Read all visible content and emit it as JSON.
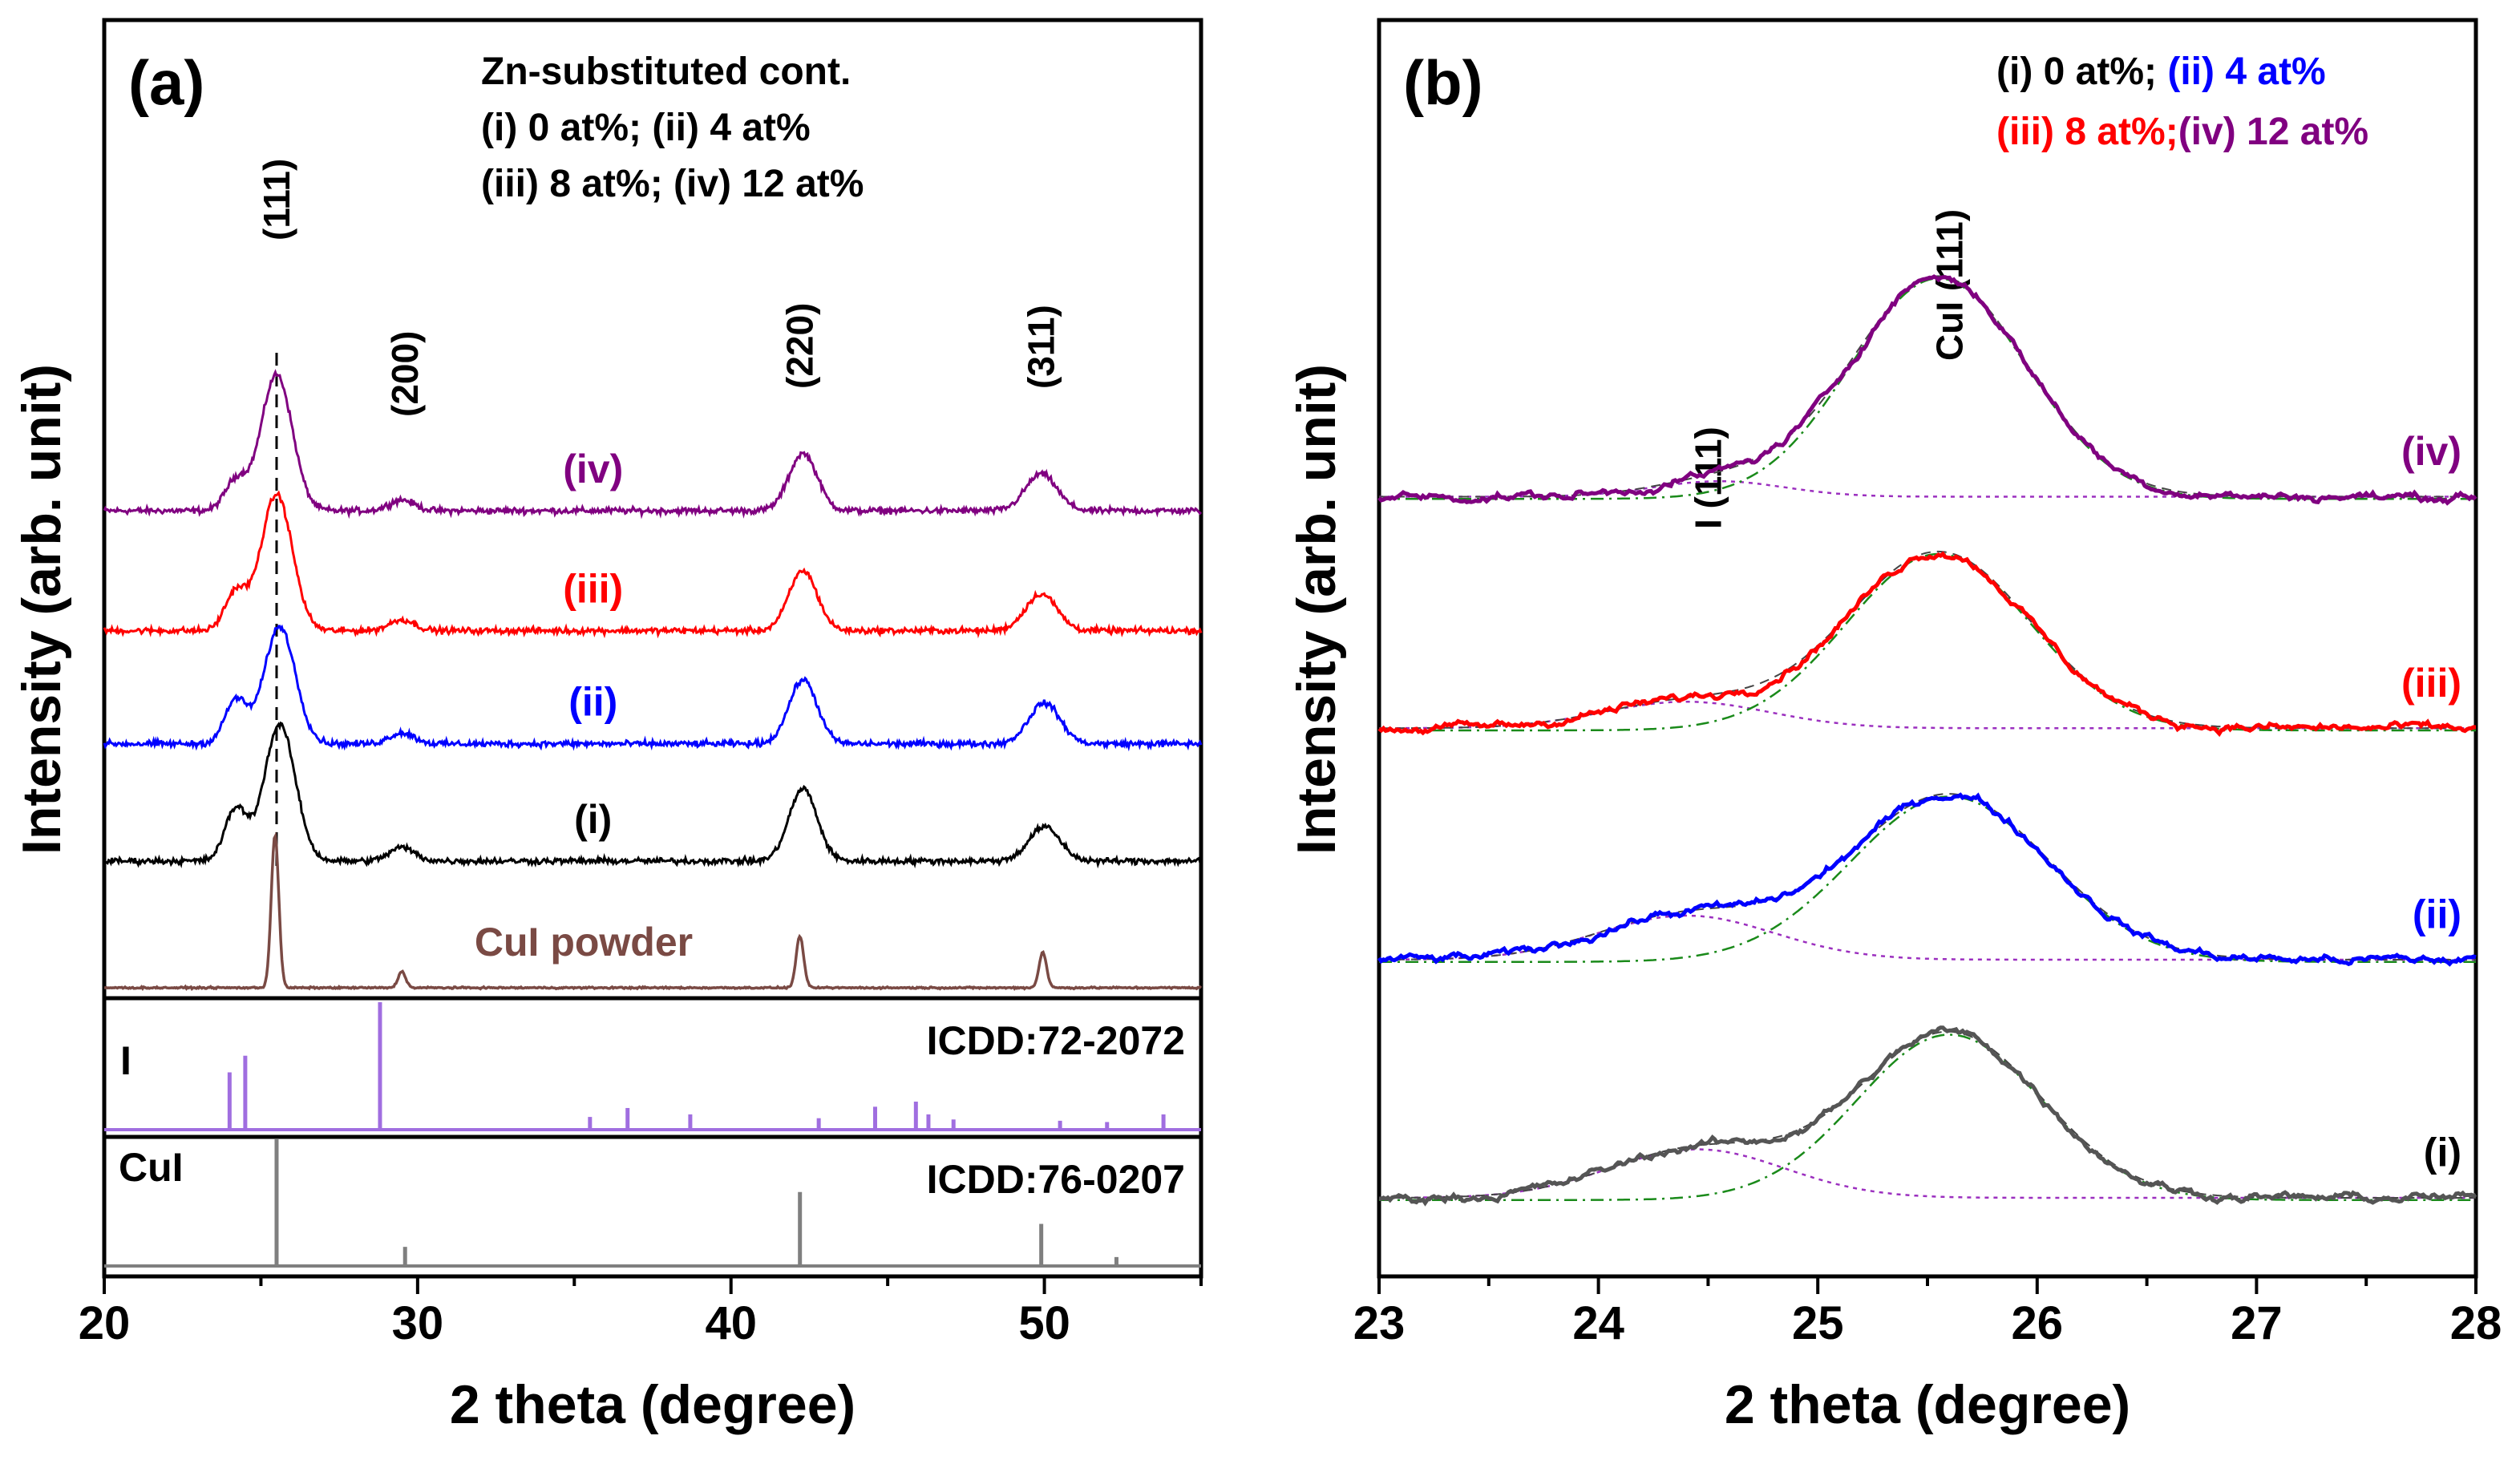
{
  "colors": {
    "i": "#000000",
    "ii": "#0000ff",
    "iii": "#ff0000",
    "iv": "#800080",
    "cui_powder": "#7a4a44",
    "iodine_ref": "#a06ee0",
    "cui_ref": "#7f7f7f",
    "fit_gauss": "#1a8a1a",
    "fit_dot": "#9b2fbf",
    "legend_black": "#000000"
  },
  "chart_data": [
    {
      "type": "line",
      "panel": "(a)",
      "xlabel": "2 theta (degree)",
      "ylabel": "Intensity (arb. unit)",
      "xlim": [
        20,
        55
      ],
      "xticks": [
        "20",
        "30",
        "40",
        "50"
      ],
      "legend": {
        "title": "Zn-substituted cont.",
        "line1": "(i) 0 at%; (ii) 4 at%",
        "line2": "(iii) 8 at%; (iv) 12 at%"
      },
      "peak_labels": [
        {
          "text": "(111)",
          "x": 25.5
        },
        {
          "text": "(200)",
          "x": 29.6
        },
        {
          "text": "(220)",
          "x": 42.2
        },
        {
          "text": "(311)",
          "x": 49.9
        }
      ],
      "series": [
        {
          "key": "iv",
          "name": "(iv)",
          "offset": 3.5,
          "peaks": [
            [
              24.2,
              0.22,
              0.35
            ],
            [
              25.5,
              1.0,
              0.5
            ],
            [
              29.5,
              0.08,
              0.4
            ],
            [
              42.3,
              0.42,
              0.45
            ],
            [
              49.9,
              0.27,
              0.5
            ]
          ]
        },
        {
          "key": "iii",
          "name": "(iii)",
          "offset": 2.62,
          "peaks": [
            [
              24.2,
              0.28,
              0.35
            ],
            [
              25.5,
              1.0,
              0.5
            ],
            [
              29.5,
              0.08,
              0.4
            ],
            [
              42.3,
              0.44,
              0.45
            ],
            [
              49.9,
              0.27,
              0.5
            ]
          ]
        },
        {
          "key": "ii",
          "name": "(ii)",
          "offset": 1.79,
          "peaks": [
            [
              24.2,
              0.32,
              0.35
            ],
            [
              25.6,
              0.86,
              0.5
            ],
            [
              29.5,
              0.08,
              0.4
            ],
            [
              42.3,
              0.47,
              0.45
            ],
            [
              50.0,
              0.3,
              0.5
            ]
          ]
        },
        {
          "key": "i",
          "name": "(i)",
          "offset": 0.93,
          "peaks": [
            [
              24.2,
              0.38,
              0.35
            ],
            [
              25.6,
              1.0,
              0.5
            ],
            [
              29.5,
              0.1,
              0.4
            ],
            [
              42.3,
              0.53,
              0.45
            ],
            [
              50.0,
              0.25,
              0.5
            ]
          ]
        },
        {
          "key": "cui_powder",
          "name": "CuI powder",
          "offset": 0.0,
          "peaks": [
            [
              25.45,
              1.12,
              0.12
            ],
            [
              29.5,
              0.12,
              0.12
            ],
            [
              42.2,
              0.38,
              0.12
            ],
            [
              49.95,
              0.26,
              0.12
            ]
          ]
        }
      ],
      "reference_patterns": [
        {
          "key": "iodine_ref",
          "label": "I",
          "card": "ICDD:72-2072",
          "sticks": [
            [
              24.0,
              0.45
            ],
            [
              24.5,
              0.58
            ],
            [
              28.8,
              1.0
            ],
            [
              35.5,
              0.1
            ],
            [
              36.7,
              0.17
            ],
            [
              38.7,
              0.12
            ],
            [
              42.8,
              0.09
            ],
            [
              44.6,
              0.18
            ],
            [
              45.9,
              0.22
            ],
            [
              46.3,
              0.12
            ],
            [
              47.1,
              0.08
            ],
            [
              50.5,
              0.07
            ],
            [
              52.0,
              0.06
            ],
            [
              53.8,
              0.12
            ]
          ]
        },
        {
          "key": "cui_ref",
          "label": "CuI",
          "card": "ICDD:76-0207",
          "sticks": [
            [
              25.5,
              1.0
            ],
            [
              29.6,
              0.15
            ],
            [
              42.2,
              0.58
            ],
            [
              49.9,
              0.33
            ],
            [
              52.3,
              0.07
            ]
          ]
        }
      ]
    },
    {
      "type": "line",
      "panel": "(b)",
      "xlabel": "2 theta (degree)",
      "ylabel": "Intensity (arb. unit)",
      "xlim": [
        23,
        28
      ],
      "xticks": [
        "23",
        "24",
        "25",
        "26",
        "27",
        "28"
      ],
      "legend": {
        "line1_a": "(i) 0 at%;",
        "line1_b": "(ii) 4 at%",
        "line2_a": "(iii) 8 at%;",
        "line2_b": "(iv) 12 at%"
      },
      "peak_labels": [
        {
          "text": "I (111)",
          "x": 24.5
        },
        {
          "text": "CuI (111)",
          "x": 25.6
        }
      ],
      "series": [
        {
          "key": "iv",
          "name": "(iv)",
          "offset": 3.4,
          "main": [
            25.55,
            1.0,
            0.4
          ],
          "side": [
            24.55,
            0.07,
            0.3
          ]
        },
        {
          "key": "iii",
          "name": "(iii)",
          "offset": 2.35,
          "main": [
            25.55,
            0.8,
            0.42
          ],
          "side": [
            24.4,
            0.12,
            0.38
          ]
        },
        {
          "key": "ii",
          "name": "(ii)",
          "offset": 1.3,
          "main": [
            25.6,
            0.75,
            0.45
          ],
          "side": [
            24.4,
            0.2,
            0.4
          ]
        },
        {
          "key": "i",
          "name": "(i)",
          "offset": 0.22,
          "main": [
            25.6,
            0.75,
            0.42
          ],
          "side": [
            24.45,
            0.22,
            0.4
          ]
        }
      ]
    }
  ]
}
